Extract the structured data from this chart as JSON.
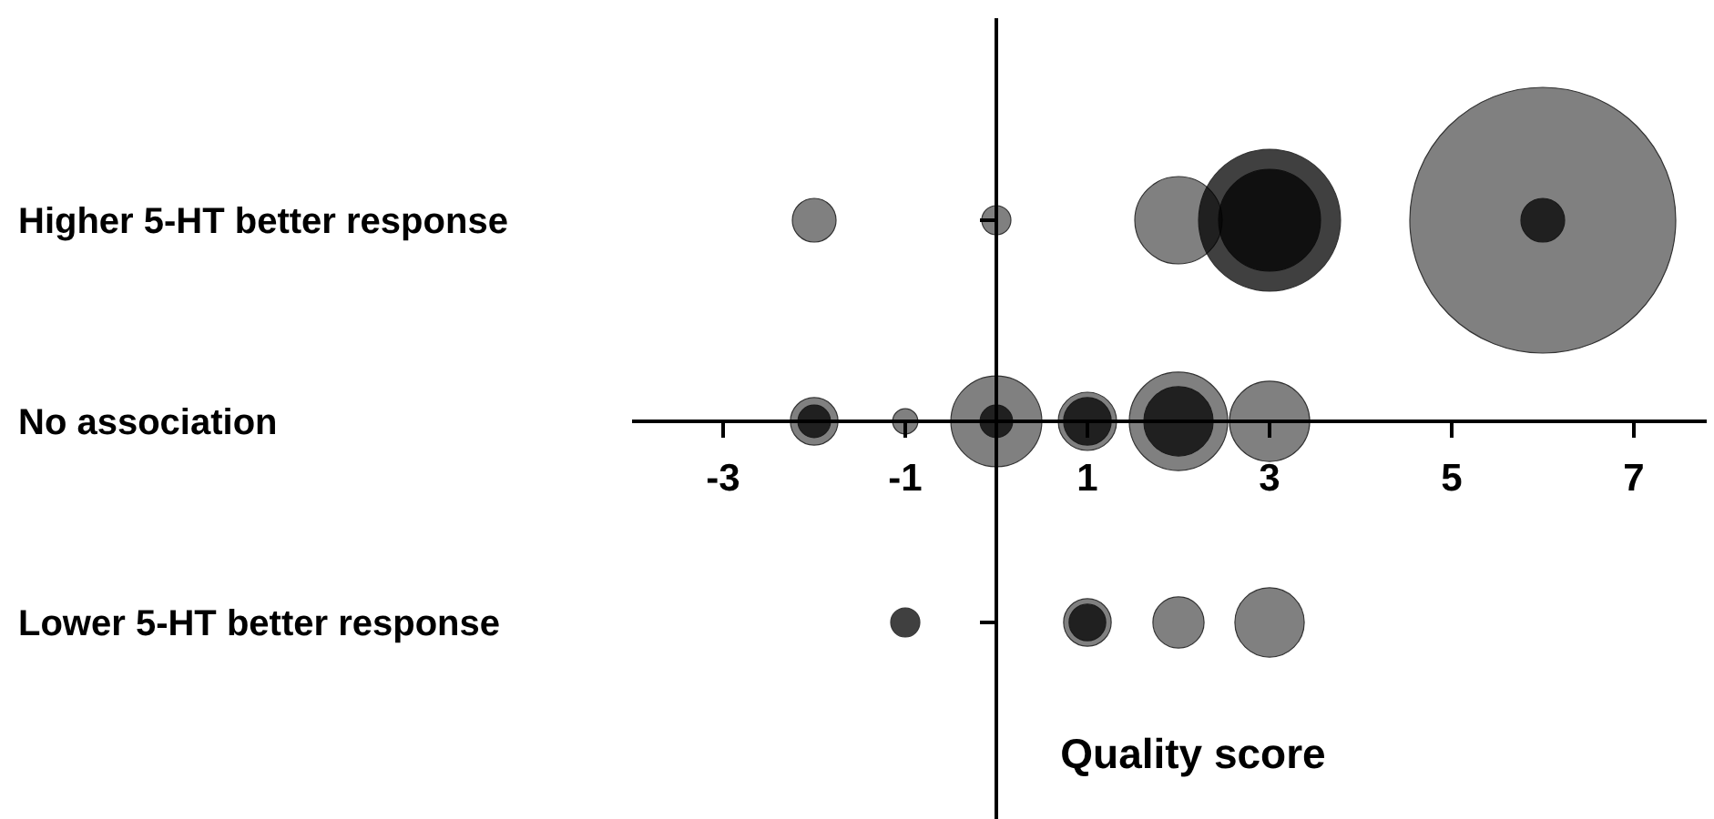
{
  "chart_data": {
    "type": "bubble",
    "orientation": "horizontal",
    "xlabel": "Quality score",
    "xlim": [
      -4,
      7.8
    ],
    "xticks": [
      -3,
      -1,
      1,
      3,
      5,
      7
    ],
    "categories": [
      "Higher 5-HT better response",
      "No association",
      "Lower 5-HT better response"
    ],
    "series": [
      {
        "color": "#808080",
        "x": [
          "Higher 5-HT better response",
          "Higher 5-HT better response",
          "Higher 5-HT better response",
          "Higher 5-HT better response",
          "No association",
          "No association",
          "No association",
          "No association",
          "No association",
          "No association",
          "Lower 5-HT better response",
          "Lower 5-HT better response",
          "Lower 5-HT better response"
        ],
        "values": [
          -2,
          0,
          2,
          6,
          -2,
          -1,
          0,
          1,
          2,
          3,
          1,
          2,
          3
        ],
        "sizes": [
          0.027,
          0.012,
          0.108,
          1,
          0.032,
          0.009,
          0.117,
          0.048,
          0.137,
          0.091,
          0.032,
          0.037,
          0.068
        ]
      },
      {
        "color": "#404040",
        "x": [
          "Higher 5-HT better response",
          "Higher 5-HT better response",
          "Higher 5-HT better response",
          "No association",
          "No association",
          "No association",
          "No association",
          "Lower 5-HT better response",
          "Lower 5-HT better response"
        ],
        "values": [
          3,
          3,
          6,
          -2,
          0,
          1,
          2,
          -1,
          1
        ],
        "sizes": [
          0.285,
          0.147,
          0.027,
          0.015,
          0.015,
          0.032,
          0.068,
          0.012,
          0.019
        ]
      }
    ]
  }
}
